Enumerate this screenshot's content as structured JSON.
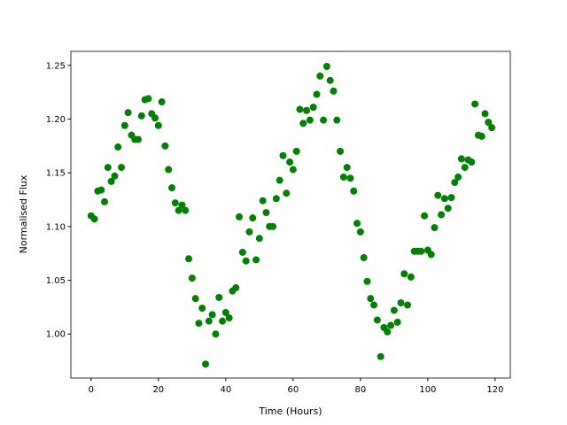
{
  "chart_data": {
    "type": "scatter",
    "xlabel": "Time (Hours)",
    "ylabel": "Normalised Flux",
    "color": "#008000",
    "x": [
      0,
      1,
      2,
      3,
      4,
      5,
      6,
      7,
      8,
      9,
      10,
      11,
      12,
      13,
      14,
      15,
      16,
      17,
      18,
      19,
      20,
      21,
      22,
      23,
      24,
      25,
      26,
      27,
      28,
      29,
      30,
      31,
      32,
      33,
      34,
      35,
      36,
      37,
      38,
      39,
      40,
      41,
      42,
      43,
      44,
      45,
      46,
      47,
      48,
      49,
      50,
      51,
      52,
      53,
      54,
      55,
      56,
      57,
      58,
      59,
      60,
      61,
      62,
      63,
      64,
      65,
      66,
      67,
      68,
      69,
      70,
      71,
      72,
      73,
      74,
      75,
      76,
      77,
      78,
      79,
      80,
      81,
      82,
      83,
      84,
      85,
      86,
      87,
      88,
      89,
      90,
      91,
      92,
      93,
      94,
      95,
      96,
      97,
      98,
      99,
      100,
      101,
      102,
      103,
      104,
      105,
      106,
      107,
      108,
      109,
      110,
      111,
      112,
      113,
      114,
      115,
      116,
      117,
      118,
      119
    ],
    "values": [
      1.11,
      1.107,
      1.133,
      1.134,
      1.123,
      1.155,
      1.142,
      1.147,
      1.174,
      1.155,
      1.194,
      1.206,
      1.185,
      1.181,
      1.181,
      1.203,
      1.218,
      1.219,
      1.205,
      1.201,
      1.194,
      1.216,
      1.175,
      1.153,
      1.136,
      1.122,
      1.115,
      1.12,
      1.115,
      1.07,
      1.052,
      1.033,
      1.01,
      1.024,
      0.972,
      1.012,
      1.018,
      1.0,
      1.034,
      1.012,
      1.02,
      1.015,
      1.04,
      1.043,
      1.109,
      1.076,
      1.068,
      1.095,
      1.108,
      1.069,
      1.089,
      1.124,
      1.113,
      1.1,
      1.1,
      1.126,
      1.143,
      1.166,
      1.131,
      1.16,
      1.153,
      1.17,
      1.209,
      1.196,
      1.208,
      1.199,
      1.211,
      1.223,
      1.24,
      1.199,
      1.249,
      1.236,
      1.226,
      1.199,
      1.17,
      1.146,
      1.155,
      1.145,
      1.133,
      1.103,
      1.095,
      1.071,
      1.049,
      1.033,
      1.027,
      1.013,
      0.979,
      1.006,
      1.002,
      1.008,
      1.022,
      1.011,
      1.029,
      1.056,
      1.027,
      1.053,
      1.077,
      1.077,
      1.077,
      1.11,
      1.078,
      1.074,
      1.099,
      1.129,
      1.111,
      1.126,
      1.117,
      1.127,
      1.141,
      1.146,
      1.163,
      1.155,
      1.162,
      1.16,
      1.214,
      1.185,
      1.184,
      1.205,
      1.197,
      1.192
    ],
    "xlim": [
      -6,
      124.5
    ],
    "ylim": [
      0.959,
      1.263
    ],
    "xticks": [
      0,
      20,
      40,
      60,
      80,
      100,
      120
    ],
    "yticks": [
      {
        "value": 1.0,
        "label": "1.00"
      },
      1.05,
      {
        "value": 1.1,
        "label": "1.10"
      },
      1.15,
      {
        "value": 1.2,
        "label": "1.20"
      },
      1.25
    ]
  }
}
